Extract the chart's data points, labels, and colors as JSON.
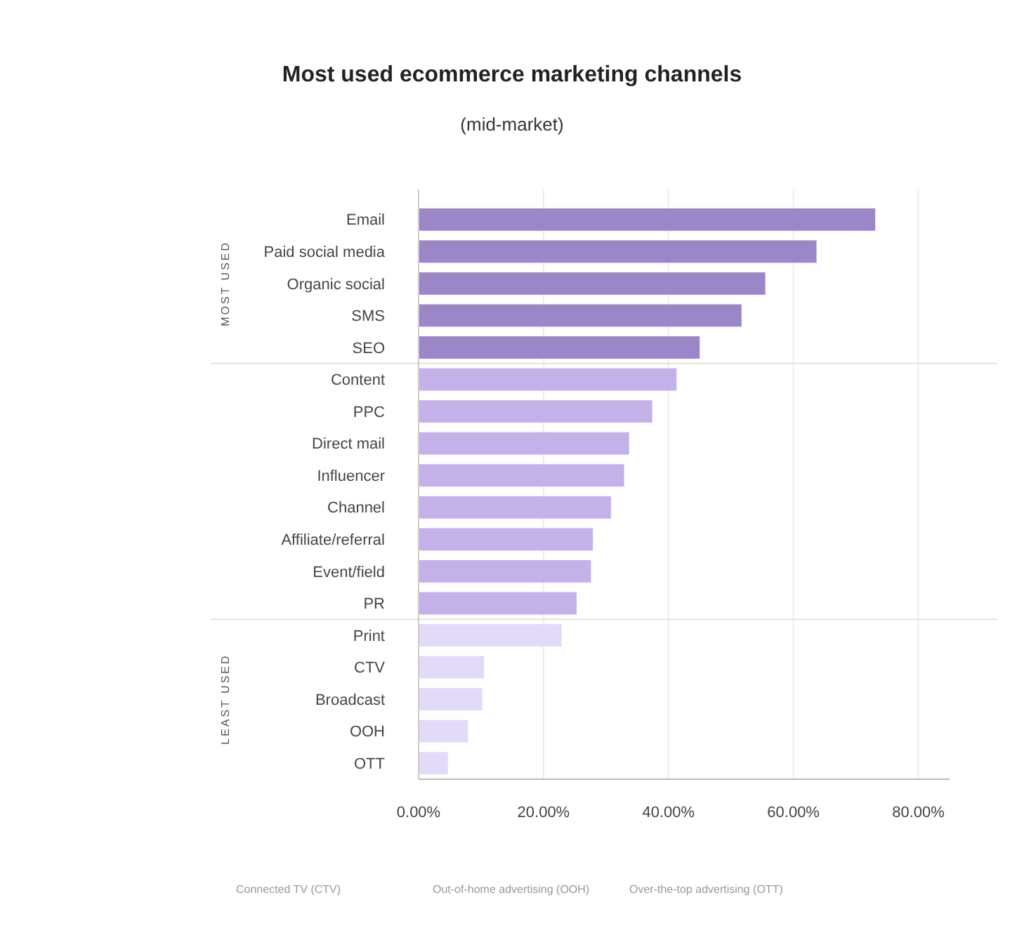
{
  "chart_data": {
    "type": "bar",
    "orientation": "horizontal",
    "title": "Most used ecommerce marketing channels",
    "subtitle": "(mid-market)",
    "categories": [
      "Email",
      "Paid social media",
      "Organic social",
      "SMS",
      "SEO",
      "Content",
      "PPC",
      "Direct mail",
      "Influencer",
      "Channel",
      "Affiliate/referral",
      "Event/field",
      "PR",
      "Print",
      "CTV",
      "Broadcast",
      "OOH",
      "OTT"
    ],
    "values": [
      73.1,
      63.7,
      55.5,
      51.7,
      45,
      41.3,
      37.4,
      33.7,
      32.9,
      30.8,
      27.9,
      27.6,
      25.3,
      22.9,
      10.5,
      10.2,
      7.9,
      4.7
    ],
    "colors": [
      "#9b87c8",
      "#9b87c8",
      "#9b87c8",
      "#9b87c8",
      "#9b87c8",
      "#c4b1ea",
      "#c4b1ea",
      "#c4b1ea",
      "#c4b1ea",
      "#c4b1ea",
      "#c4b1ea",
      "#c4b1ea",
      "#c4b1ea",
      "#e3dafa",
      "#e3dafa",
      "#e3dafa",
      "#e3dafa",
      "#e3dafa"
    ],
    "xlim": [
      0,
      85
    ],
    "xticks": [
      {
        "value": 0,
        "label": "0.00%"
      },
      {
        "value": 20,
        "label": "20.00%"
      },
      {
        "value": 40,
        "label": "40.00%"
      },
      {
        "value": 60,
        "label": "60.00%"
      },
      {
        "value": 80,
        "label": "80.00%"
      }
    ],
    "grid": "x",
    "annotations": [
      "MOST USED",
      "LEAST USED",
      "Connected TV (CTV)",
      "Out-of-home advertising (OOH)",
      "Over-the-top advertising (OTT)"
    ]
  }
}
